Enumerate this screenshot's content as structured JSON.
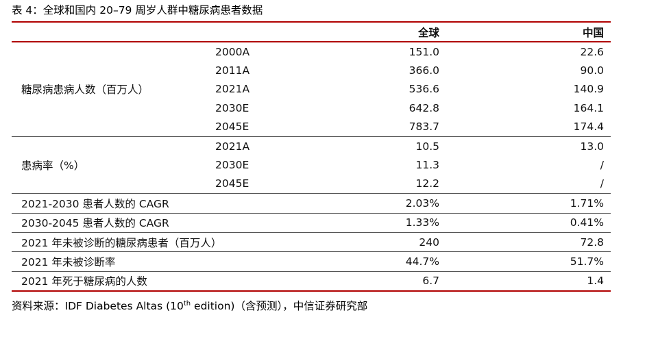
{
  "title": "表 4：全球和国内 20–79 周岁人群中糖尿病患者数据",
  "table": {
    "headers": {
      "global": "全球",
      "china": "中国"
    },
    "patients": {
      "label": "糖尿病患病人数（百万人）",
      "rows": [
        {
          "year": "2000A",
          "global": "151.0",
          "china": "22.6"
        },
        {
          "year": "2011A",
          "global": "366.0",
          "china": "90.0"
        },
        {
          "year": "2021A",
          "global": "536.6",
          "china": "140.9"
        },
        {
          "year": "2030E",
          "global": "642.8",
          "china": "164.1"
        },
        {
          "year": "2045E",
          "global": "783.7",
          "china": "174.4"
        }
      ]
    },
    "prevalence": {
      "label": "患病率（%）",
      "rows": [
        {
          "year": "2021A",
          "global": "10.5",
          "china": "13.0"
        },
        {
          "year": "2030E",
          "global": "11.3",
          "china": "/"
        },
        {
          "year": "2045E",
          "global": "12.2",
          "china": "/"
        }
      ]
    },
    "single_rows": [
      {
        "label": "2021-2030 患者人数的 CAGR",
        "global": "2.03%",
        "china": "1.71%"
      },
      {
        "label": "2030-2045 患者人数的 CAGR",
        "global": "1.33%",
        "china": "0.41%"
      },
      {
        "label": "2021 年未被诊断的糖尿病患者（百万人）",
        "global": "240",
        "china": "72.8"
      },
      {
        "label": "2021 年未被诊断率",
        "global": "44.7%",
        "china": "51.7%"
      },
      {
        "label": "2021 年死于糖尿病的人数",
        "global": "6.7",
        "china": "1.4"
      }
    ]
  },
  "source": {
    "prefix": "资料来源：IDF Diabetes Altas (10",
    "sup": "th",
    "suffix": " edition)（含预测），中信证券研究部"
  }
}
